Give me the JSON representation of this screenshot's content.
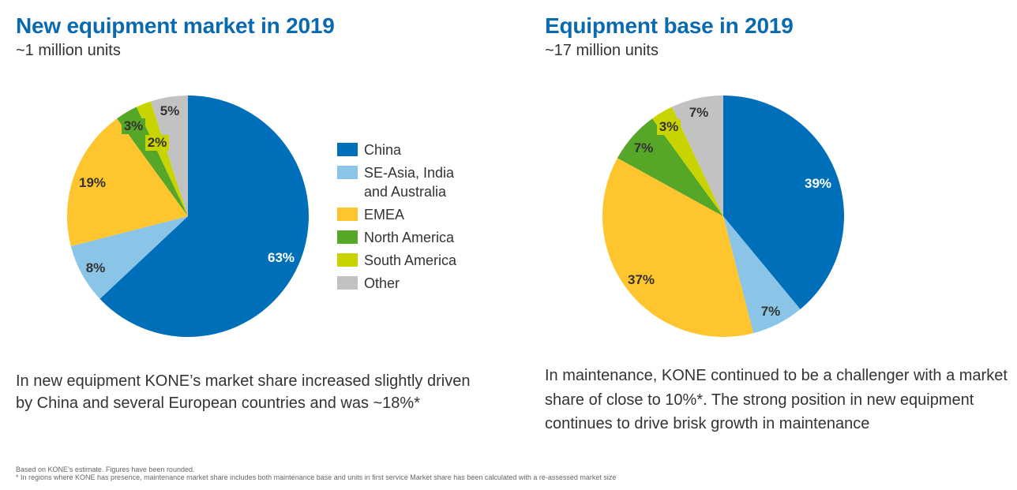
{
  "colors": {
    "title": "#0a6ab0",
    "china": "#006fb9",
    "seasia": "#8ac4e6",
    "emea": "#fec52e",
    "north_america": "#56a628",
    "south_america": "#c8d400",
    "other": "#c2c2c2"
  },
  "legend": [
    {
      "label": "China",
      "color": "#006fb9"
    },
    {
      "label": "SE-Asia, India and Australia",
      "color": "#8ac4e6"
    },
    {
      "label": "EMEA",
      "color": "#fec52e"
    },
    {
      "label": "North America",
      "color": "#56a628"
    },
    {
      "label": "South America",
      "color": "#c8d400"
    },
    {
      "label": "Other",
      "color": "#c2c2c2"
    }
  ],
  "left": {
    "title": "New equipment market in 2019",
    "subtitle": "~1 million units",
    "text": "In new equipment KONE’s market share increased slightly driven by China and several European countries and was ~18%*"
  },
  "right": {
    "title": "Equipment base in 2019",
    "subtitle": "~17 million units",
    "text": "In maintenance, KONE continued to be a challenger with a market share of close to 10%*. The strong position in new equipment continues to drive brisk growth in maintenance"
  },
  "chart_data": [
    {
      "type": "pie",
      "title": "New equipment market in 2019",
      "subtitle": "~1 million units",
      "categories": [
        "China",
        "SE-Asia, India and Australia",
        "EMEA",
        "North America",
        "South America",
        "Other"
      ],
      "values": [
        63,
        8,
        19,
        3,
        2,
        5
      ],
      "labels": [
        "63%",
        "8%",
        "19%",
        "3%",
        "2%",
        "5%"
      ]
    },
    {
      "type": "pie",
      "title": "Equipment base in 2019",
      "subtitle": "~17 million units",
      "categories": [
        "China",
        "SE-Asia, India and Australia",
        "EMEA",
        "North America",
        "South America",
        "Other"
      ],
      "values": [
        39,
        7,
        37,
        7,
        3,
        7
      ],
      "labels": [
        "39%",
        "7%",
        "37%",
        "7%",
        "3%",
        "7%"
      ]
    }
  ],
  "footnotes": {
    "line1": "Based on KONE’s estimate. Figures have been rounded.",
    "line2": "* In regions where KONE has presence, maintenance market share includes both maintenance base and units in first service  Market share has been calculated with a re-assessed market size"
  }
}
